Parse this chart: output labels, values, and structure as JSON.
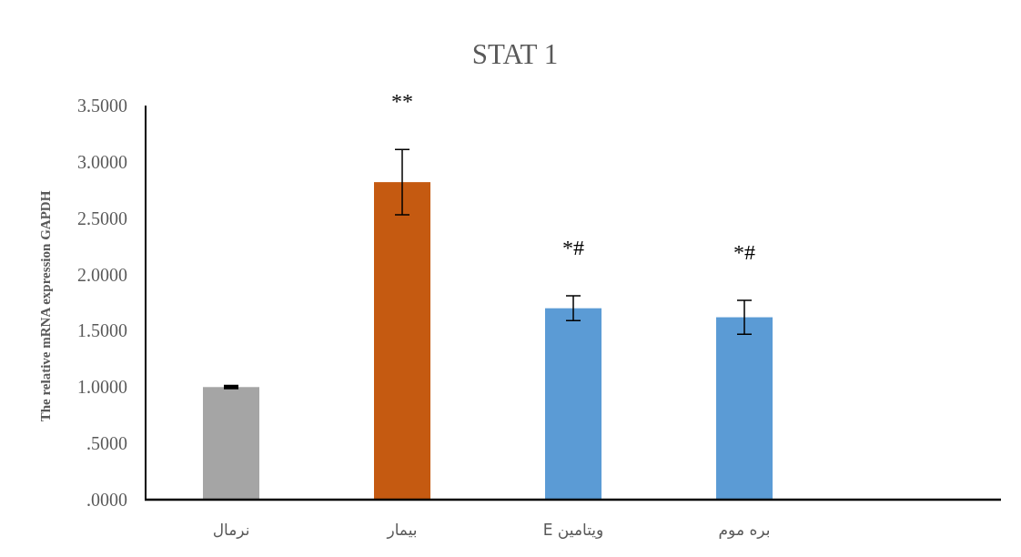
{
  "chart_data": {
    "type": "bar",
    "title": "STAT 1",
    "ylabel": "The relative mRNA expression GAPDH",
    "categories": [
      "نرمال",
      "بیمار",
      "ویتامین E",
      "بره موم",
      null
    ],
    "values": [
      1.0,
      2.82,
      1.7,
      1.62,
      null
    ],
    "errors": [
      0.01,
      0.29,
      0.11,
      0.15,
      null
    ],
    "colors": [
      "#a5a5a5",
      "#c55a11",
      "#5b9bd5",
      "#5b9bd5",
      null
    ],
    "ylim": [
      0,
      3.5
    ],
    "yticks": [
      {
        "value": 0,
        "label": ".0000"
      },
      {
        "value": 0.5,
        "label": ".5000"
      },
      {
        "value": 1,
        "label": "1.0000"
      },
      {
        "value": 1.5,
        "label": "1.5000"
      },
      {
        "value": 2,
        "label": "2.0000"
      },
      {
        "value": 2.5,
        "label": "2.5000"
      },
      {
        "value": 3,
        "label": "3.0000"
      },
      {
        "value": 3.5,
        "label": "3.5000"
      }
    ],
    "annotations": [
      {
        "text": "**",
        "x": "بیمار",
        "y": 3.11
      },
      {
        "text": "*#",
        "x": "ویتامین E",
        "y": 1.81
      },
      {
        "text": "*#",
        "x": "بره موم",
        "y": 1.77
      }
    ],
    "grid": false
  }
}
